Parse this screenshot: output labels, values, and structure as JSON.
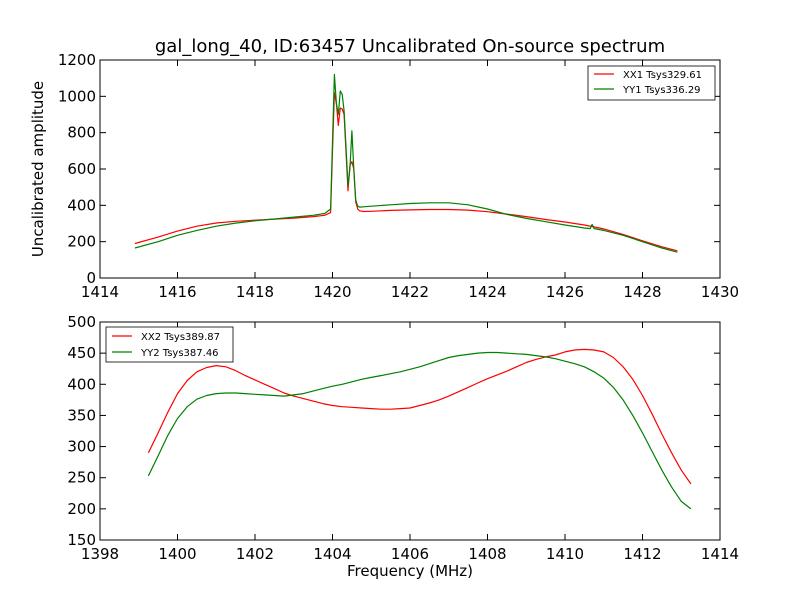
{
  "figure": {
    "title": "gal_long_40, ID:63457 Uncalibrated On-source spectrum"
  },
  "chart_data": [
    {
      "type": "line",
      "ylabel": "Uncalibrated amplitude",
      "xlabel": "",
      "xlim": [
        1414,
        1430
      ],
      "ylim": [
        0,
        1200
      ],
      "xticks": [
        "1414",
        "1416",
        "1418",
        "1420",
        "1422",
        "1424",
        "1426",
        "1428",
        "1430"
      ],
      "yticks": [
        "0",
        "200",
        "400",
        "600",
        "800",
        "1000",
        "1200"
      ],
      "legend_position": "top-right",
      "series": [
        {
          "name": "XX1 Tsys329.61",
          "color": "#ff0000",
          "x": [
            1414.9,
            1415.5,
            1416.0,
            1416.5,
            1417.0,
            1417.5,
            1418.0,
            1418.5,
            1419.0,
            1419.5,
            1419.8,
            1419.95,
            1420.0,
            1420.05,
            1420.1,
            1420.15,
            1420.2,
            1420.25,
            1420.3,
            1420.4,
            1420.45,
            1420.5,
            1420.55,
            1420.6,
            1420.65,
            1420.7,
            1420.8,
            1421.0,
            1421.5,
            1422.0,
            1422.5,
            1423.0,
            1423.5,
            1424.0,
            1424.5,
            1425.0,
            1425.5,
            1426.0,
            1426.5,
            1427.0,
            1427.5,
            1428.0,
            1428.5,
            1428.9
          ],
          "y": [
            190,
            225,
            258,
            285,
            303,
            312,
            318,
            324,
            330,
            338,
            345,
            360,
            700,
            1020,
            960,
            840,
            935,
            930,
            900,
            480,
            620,
            640,
            600,
            420,
            380,
            370,
            366,
            367,
            372,
            375,
            377,
            377,
            374,
            365,
            352,
            338,
            322,
            308,
            292,
            270,
            240,
            205,
            172,
            150
          ]
        },
        {
          "name": "YY1 Tsys336.29",
          "color": "#008000",
          "x": [
            1414.9,
            1415.5,
            1416.0,
            1416.5,
            1417.0,
            1417.5,
            1418.0,
            1418.5,
            1419.0,
            1419.5,
            1419.8,
            1419.95,
            1420.0,
            1420.05,
            1420.1,
            1420.15,
            1420.2,
            1420.25,
            1420.3,
            1420.4,
            1420.45,
            1420.5,
            1420.55,
            1420.6,
            1420.65,
            1420.7,
            1420.8,
            1421.0,
            1421.5,
            1422.0,
            1422.5,
            1423.0,
            1423.5,
            1424.0,
            1424.5,
            1425.0,
            1425.5,
            1426.0,
            1426.5,
            1426.65,
            1426.7,
            1426.75,
            1427.0,
            1427.5,
            1428.0,
            1428.5,
            1428.9
          ],
          "y": [
            165,
            200,
            235,
            262,
            285,
            302,
            315,
            325,
            335,
            345,
            355,
            380,
            750,
            1120,
            960,
            900,
            1030,
            1010,
            920,
            510,
            600,
            810,
            600,
            430,
            395,
            390,
            392,
            395,
            403,
            410,
            414,
            414,
            403,
            380,
            350,
            328,
            310,
            292,
            275,
            272,
            295,
            272,
            262,
            235,
            200,
            165,
            142
          ]
        }
      ]
    },
    {
      "type": "line",
      "ylabel": "",
      "xlabel": "Frequency (MHz)",
      "xlim": [
        1398,
        1414
      ],
      "ylim": [
        150,
        500
      ],
      "xticks": [
        "1398",
        "1400",
        "1402",
        "1404",
        "1406",
        "1408",
        "1410",
        "1412",
        "1414"
      ],
      "yticks": [
        "150",
        "200",
        "250",
        "300",
        "350",
        "400",
        "450",
        "500"
      ],
      "legend_position": "top-left",
      "series": [
        {
          "name": "XX2 Tsys389.87",
          "color": "#ff0000",
          "x": [
            1399.25,
            1399.5,
            1399.75,
            1400.0,
            1400.25,
            1400.5,
            1400.75,
            1401.0,
            1401.25,
            1401.5,
            1401.75,
            1402.0,
            1402.25,
            1402.5,
            1402.75,
            1403.0,
            1403.25,
            1403.5,
            1403.75,
            1404.0,
            1404.25,
            1404.5,
            1404.75,
            1405.0,
            1405.25,
            1405.5,
            1405.75,
            1406.0,
            1406.25,
            1406.5,
            1406.75,
            1407.0,
            1407.25,
            1407.5,
            1407.75,
            1408.0,
            1408.25,
            1408.5,
            1408.75,
            1409.0,
            1409.25,
            1409.5,
            1409.75,
            1410.0,
            1410.25,
            1410.5,
            1410.75,
            1411.0,
            1411.25,
            1411.5,
            1411.75,
            1412.0,
            1412.25,
            1412.5,
            1412.75,
            1413.0,
            1413.25
          ],
          "y": [
            290,
            322,
            355,
            385,
            406,
            420,
            427,
            430,
            428,
            422,
            414,
            407,
            400,
            393,
            386,
            381,
            377,
            373,
            369,
            366,
            364,
            363,
            362,
            361,
            360,
            360,
            361,
            362,
            366,
            370,
            375,
            381,
            388,
            395,
            402,
            409,
            415,
            421,
            428,
            435,
            440,
            444,
            447,
            452,
            455,
            456,
            455,
            452,
            443,
            428,
            408,
            382,
            352,
            320,
            290,
            262,
            240
          ]
        },
        {
          "name": "YY2 Tsys387.46",
          "color": "#008000",
          "x": [
            1399.25,
            1399.5,
            1399.75,
            1400.0,
            1400.25,
            1400.5,
            1400.75,
            1401.0,
            1401.25,
            1401.5,
            1401.75,
            1402.0,
            1402.25,
            1402.5,
            1402.75,
            1403.0,
            1403.25,
            1403.5,
            1403.75,
            1404.0,
            1404.25,
            1404.5,
            1404.75,
            1405.0,
            1405.25,
            1405.5,
            1405.75,
            1406.0,
            1406.25,
            1406.5,
            1406.75,
            1407.0,
            1407.25,
            1407.5,
            1407.75,
            1408.0,
            1408.25,
            1408.5,
            1408.75,
            1409.0,
            1409.25,
            1409.5,
            1409.75,
            1410.0,
            1410.25,
            1410.5,
            1410.75,
            1411.0,
            1411.25,
            1411.5,
            1411.75,
            1412.0,
            1412.25,
            1412.5,
            1412.75,
            1413.0,
            1413.25
          ],
          "y": [
            253,
            285,
            318,
            345,
            364,
            376,
            382,
            385,
            386,
            386,
            385,
            384,
            383,
            382,
            381,
            383,
            385,
            389,
            393,
            397,
            400,
            404,
            408,
            411,
            414,
            417,
            420,
            424,
            428,
            433,
            438,
            443,
            446,
            448,
            450,
            451,
            451,
            450,
            449,
            448,
            446,
            444,
            441,
            437,
            433,
            428,
            420,
            410,
            395,
            375,
            350,
            322,
            292,
            262,
            235,
            212,
            200
          ]
        }
      ]
    }
  ]
}
